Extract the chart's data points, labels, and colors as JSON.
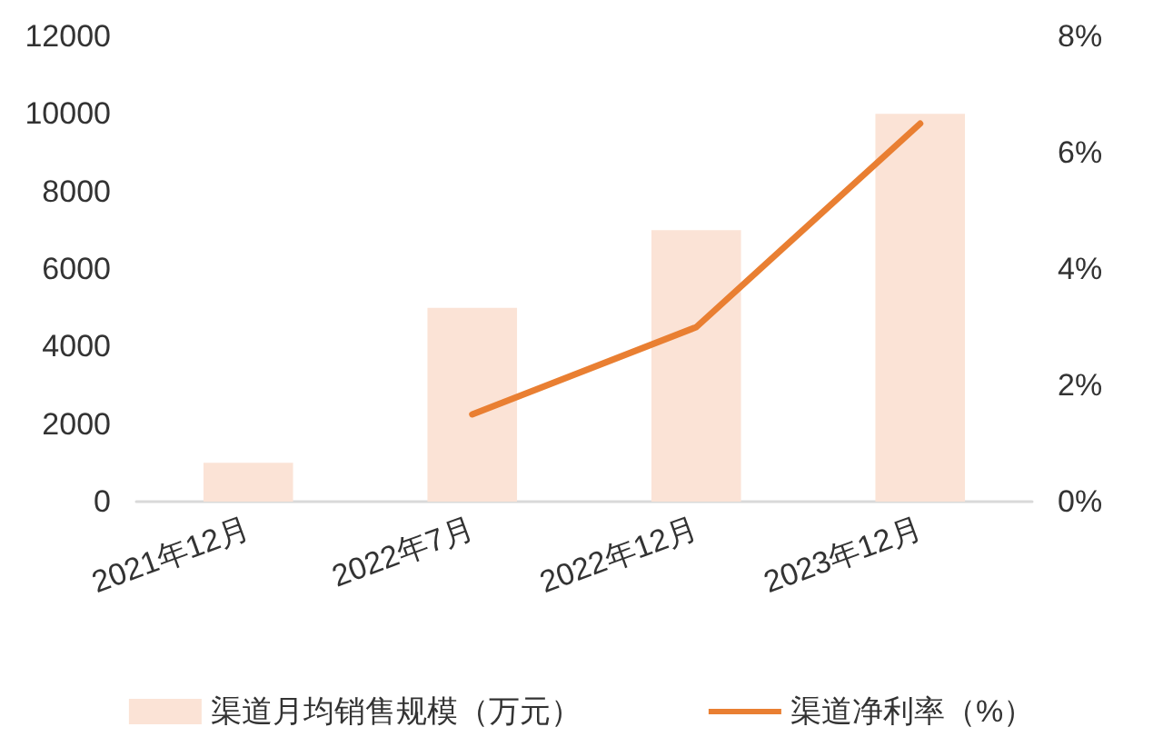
{
  "chart_data": {
    "type": "bar",
    "categories": [
      "2021年12月",
      "2022年7月",
      "2022年12月",
      "2023年12月"
    ],
    "series": [
      {
        "name": "渠道月均销售规模（万元）",
        "color": "#fbe3d6",
        "values": [
          1000,
          5000,
          7000,
          10000
        ]
      },
      {
        "name": "渠道净利率（%）",
        "type": "line",
        "axis": "y2",
        "color": "#e97f32",
        "values": [
          null,
          1.5,
          3.0,
          6.5
        ]
      }
    ],
    "ylim": [
      0,
      12000
    ],
    "yticks": [
      0,
      2000,
      4000,
      6000,
      8000,
      10000,
      12000
    ],
    "y2lim": [
      0,
      8
    ],
    "y2ticks": [
      {
        "value": 0,
        "label": "0%"
      },
      {
        "value": 2,
        "label": "2%"
      },
      {
        "value": 4,
        "label": "4%"
      },
      {
        "value": 6,
        "label": "6%"
      },
      {
        "value": 8,
        "label": "8%"
      }
    ],
    "grid": false,
    "legend": "bottom",
    "marker": "none"
  }
}
